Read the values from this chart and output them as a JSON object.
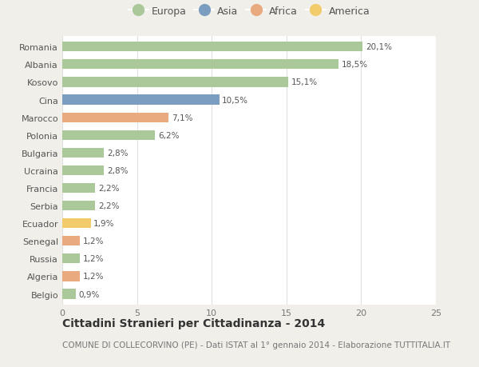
{
  "countries": [
    "Romania",
    "Albania",
    "Kosovo",
    "Cina",
    "Marocco",
    "Polonia",
    "Bulgaria",
    "Ucraina",
    "Francia",
    "Serbia",
    "Ecuador",
    "Senegal",
    "Russia",
    "Algeria",
    "Belgio"
  ],
  "values": [
    20.1,
    18.5,
    15.1,
    10.5,
    7.1,
    6.2,
    2.8,
    2.8,
    2.2,
    2.2,
    1.9,
    1.2,
    1.2,
    1.2,
    0.9
  ],
  "labels": [
    "20,1%",
    "18,5%",
    "15,1%",
    "10,5%",
    "7,1%",
    "6,2%",
    "2,8%",
    "2,8%",
    "2,2%",
    "2,2%",
    "1,9%",
    "1,2%",
    "1,2%",
    "1,2%",
    "0,9%"
  ],
  "continents": [
    "Europa",
    "Europa",
    "Europa",
    "Asia",
    "Africa",
    "Europa",
    "Europa",
    "Europa",
    "Europa",
    "Europa",
    "America",
    "Africa",
    "Europa",
    "Africa",
    "Europa"
  ],
  "colors": {
    "Europa": "#aac899",
    "Asia": "#7b9dbf",
    "Africa": "#e8aa7e",
    "America": "#f2cc6a"
  },
  "legend_order": [
    "Europa",
    "Asia",
    "Africa",
    "America"
  ],
  "xlim": [
    0,
    25
  ],
  "xticks": [
    0,
    5,
    10,
    15,
    20,
    25
  ],
  "title": "Cittadini Stranieri per Cittadinanza - 2014",
  "subtitle": "COMUNE DI COLLECORVINO (PE) - Dati ISTAT al 1° gennaio 2014 - Elaborazione TUTTITALIA.IT",
  "background_color": "#f0efea",
  "plot_bg_color": "#ffffff",
  "grid_color": "#e0e0e0",
  "title_fontsize": 10,
  "subtitle_fontsize": 7.5,
  "bar_height": 0.55
}
